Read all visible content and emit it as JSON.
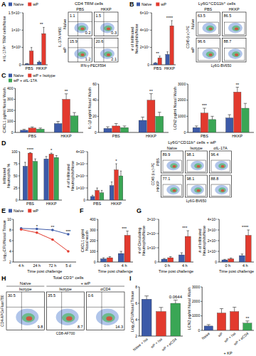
{
  "chart_data": [
    {
      "type": "bar",
      "title": "A",
      "ylabel": "# IL-17A⁺ TRM cells/Nose",
      "categories": [
        "PBS",
        "HKKP"
      ],
      "series": [
        {
          "name": "Naïve",
          "color": "#3c5aa8",
          "values": [
            300,
            800
          ],
          "errors": [
            100,
            250
          ]
        },
        {
          "name": "wP",
          "color": "#e23a2e",
          "values": [
            4000,
            9000
          ],
          "errors": [
            1000,
            1800
          ]
        }
      ],
      "ylim": [
        0,
        15000
      ],
      "yticks": [
        0,
        {
          "value": 5000,
          "label": "5×10³"
        },
        {
          "value": 10000,
          "label": "1×10⁴"
        },
        {
          "value": 15000,
          "label": "1.5×10⁴"
        }
      ],
      "legend": "top",
      "annotations": [
        {
          "text": "**",
          "category": 1
        }
      ]
    },
    {
      "type": "flow",
      "subtitle": "CD4 TRM cells",
      "rows": [
        "Naïve",
        "wP"
      ],
      "columns": [
        "PBS",
        "HKKP"
      ],
      "xlabel": "IFN-γ-PECF594",
      "ylabel": "IL-17A-V450",
      "values": [
        [
          1.1,
          0.2
        ],
        [
          1.5,
          0.3
        ],
        [
          15.9,
          1.2
        ],
        [
          20.6,
          2.1
        ]
      ]
    },
    {
      "type": "bar",
      "title": "B",
      "ylabel": "# of Infiltrated Neutrophils/Nose",
      "categories": [
        "PBS",
        "HKKP"
      ],
      "series": [
        {
          "name": "Naïve",
          "color": "#3c5aa8",
          "values": [
            2000,
            12000
          ],
          "errors": [
            600,
            3000
          ]
        },
        {
          "name": "wP",
          "color": "#e23a2e",
          "values": [
            8000,
            45000
          ],
          "errors": [
            2000,
            6000
          ]
        }
      ],
      "ylim": [
        0,
        60000
      ],
      "yticks": [
        0,
        {
          "value": 20000,
          "label": "2×10⁴"
        },
        {
          "value": 40000,
          "label": "4×10⁴"
        },
        {
          "value": 60000,
          "label": "6×10⁴"
        }
      ],
      "legend": "top",
      "annotations": [
        {
          "text": "**",
          "category": 0
        },
        {
          "text": "****",
          "category": 1
        }
      ]
    },
    {
      "type": "flow",
      "subtitle": "Ly6G⁺CD11b⁺ cells",
      "rows": [
        "Naïve",
        "wP"
      ],
      "columns": [
        "PBS",
        "HKKP"
      ],
      "xlabel": "Ly6G-BV650",
      "ylabel": "CD45 (i.v.)-PE",
      "values": [
        [
          63.5
        ],
        [
          86.5
        ],
        [
          96.6
        ],
        [
          88.7
        ]
      ]
    },
    {
      "type": "bar",
      "title": "C",
      "ylabel": "CXCL1 pg/ml Nasal Wash",
      "categories": [
        "PBS",
        "HKKP"
      ],
      "series": [
        {
          "name": "Naïve",
          "color": "#3c5aa8",
          "values": [
            20,
            80
          ],
          "errors": [
            8,
            20
          ]
        },
        {
          "name": "wP + Isotype",
          "color": "#e23a2e",
          "values": [
            40,
            300
          ],
          "errors": [
            10,
            50
          ]
        },
        {
          "name": "wP + αIL-17A",
          "color": "#3aa655",
          "values": [
            30,
            150
          ],
          "errors": [
            10,
            30
          ]
        }
      ],
      "ylim": [
        0,
        400
      ],
      "yticks": [
        0,
        100,
        200,
        300,
        400
      ],
      "legend": "top",
      "annotations": [
        {
          "text": "**",
          "category": 1
        }
      ]
    },
    {
      "type": "bar",
      "ylabel": "IL-1β pg/ml Nasal Wash",
      "categories": [
        "PBS",
        "HKKP"
      ],
      "series": [
        {
          "color": "#3c5aa8",
          "values": [
            5,
            15
          ],
          "errors": [
            2,
            4
          ]
        },
        {
          "color": "#e23a2e",
          "values": [
            8,
            40
          ],
          "errors": [
            3,
            8
          ]
        },
        {
          "color": "#3aa655",
          "values": [
            6,
            20
          ],
          "errors": [
            2,
            5
          ]
        }
      ],
      "ylim": [
        0,
        60
      ],
      "yticks": [
        0,
        20,
        40,
        60
      ],
      "annotations": [
        {
          "text": "**",
          "category": 1
        }
      ]
    },
    {
      "type": "bar",
      "ylabel": "LCN2 pg/ml Nasal Wash",
      "categories": [
        "PBS",
        "HKKP"
      ],
      "series": [
        {
          "color": "#3c5aa8",
          "values": [
            300,
            900
          ],
          "errors": [
            100,
            200
          ]
        },
        {
          "color": "#e23a2e",
          "values": [
            1200,
            2500
          ],
          "errors": [
            300,
            300
          ]
        },
        {
          "color": "#3aa655",
          "values": [
            800,
            1500
          ],
          "errors": [
            200,
            300
          ]
        }
      ],
      "ylim": [
        0,
        3000
      ],
      "yticks": [
        0,
        1000,
        2000,
        3000
      ],
      "annotations": [
        {
          "text": "***",
          "category": 0
        },
        {
          "text": "**",
          "category": 1
        }
      ]
    },
    {
      "type": "bar",
      "title": "D",
      "ylabel": "Infiltrated Neutrophils %",
      "categories": [
        "PBS",
        "HKKP"
      ],
      "series": [
        {
          "color": "#3c5aa8",
          "values": [
            70,
            85
          ],
          "errors": [
            8,
            5
          ]
        },
        {
          "color": "#e23a2e",
          "values": [
            97,
            95
          ],
          "errors": [
            1,
            2
          ]
        },
        {
          "color": "#3aa655",
          "values": [
            80,
            88
          ],
          "errors": [
            5,
            4
          ]
        }
      ],
      "ylim": [
        0,
        100
      ],
      "yticks": [
        0,
        25,
        50,
        75,
        100
      ],
      "annotations": [
        {
          "text": "****",
          "category": 0
        },
        {
          "text": "*",
          "category": 1
        }
      ]
    },
    {
      "type": "bar",
      "ylabel": "# of Infiltrated Neutrophils/Nose",
      "categories": [
        "PBS",
        "HKKP"
      ],
      "series": [
        {
          "color": "#3c5aa8",
          "values": [
            3000,
            12000
          ],
          "errors": [
            1000,
            3000
          ]
        },
        {
          "color": "#e23a2e",
          "values": [
            8000,
            25000
          ],
          "errors": [
            2000,
            5000
          ]
        },
        {
          "color": "#3aa655",
          "values": [
            6000,
            20000
          ],
          "errors": [
            2000,
            4000
          ]
        }
      ],
      "ylim": [
        0,
        40000
      ],
      "yticks": [
        0,
        {
          "value": 10000,
          "label": "1×10⁴"
        },
        {
          "value": 20000,
          "label": "2×10⁴"
        },
        {
          "value": 30000,
          "label": "3×10⁴"
        },
        {
          "value": 40000,
          "label": "4×10⁴"
        }
      ],
      "annotations": [
        {
          "text": "*",
          "category": 1
        }
      ]
    },
    {
      "type": "flow",
      "subtitle": "Ly6G⁺CD11b⁺ cells + wP",
      "rows": [
        "PBS",
        "HKKP"
      ],
      "columns": [
        "Naïve",
        "Isotype",
        "αIL-17A"
      ],
      "xlabel": "Ly6G-BV650",
      "ylabel": "CD45 (i.v.)-PE",
      "values": [
        [
          89.9
        ],
        [
          98.1
        ],
        [
          96.4
        ],
        [
          77.1
        ],
        [
          98.1
        ],
        [
          88.8
        ]
      ]
    },
    {
      "type": "line",
      "title": "E",
      "ylabel": "Log₁₀CFU/Nasal Tissue",
      "xlabel": "Time post challenge",
      "categories": [
        "4 h",
        "24 h",
        "72 h",
        "5 d"
      ],
      "series": [
        {
          "name": "Naïve",
          "color": "#3c5aa8",
          "values": [
            8.3,
            8.2,
            8.0,
            7.2
          ]
        },
        {
          "name": "wP",
          "color": "#e23a2e",
          "values": [
            8.1,
            7.5,
            6.2,
            4.0
          ]
        }
      ],
      "ylim": [
        2,
        10
      ],
      "yticks": [
        2,
        4,
        6,
        8,
        10
      ],
      "legend": "top",
      "annotations": [
        {
          "text": "*",
          "category": 1
        },
        {
          "text": "**",
          "category": 2
        },
        {
          "text": "***",
          "category": 3
        }
      ]
    },
    {
      "type": "bar",
      "title": "F",
      "ylabel": "CXCL1 pg/ml Nasal wash",
      "xlabel": "Time post challenge",
      "categories": [
        "0 h",
        "4 h"
      ],
      "series": [
        {
          "color": "#3c5aa8",
          "values": [
            30,
            80
          ],
          "errors": [
            10,
            20
          ]
        },
        {
          "color": "#e23a2e",
          "values": [
            40,
            250
          ],
          "errors": [
            10,
            40
          ]
        }
      ],
      "ylim": [
        0,
        400
      ],
      "yticks": [
        0,
        100,
        200,
        300,
        400
      ],
      "annotations": [
        {
          "text": "***",
          "category": 1
        }
      ]
    },
    {
      "type": "bar",
      "title": "G",
      "ylabel": "# of Circulating Neutrophils/Nose",
      "xlabel": "Time post challenge",
      "categories": [
        "0 h",
        "4 h"
      ],
      "series": [
        {
          "color": "#3c5aa8",
          "values": [
            2000,
            5000
          ],
          "errors": [
            500,
            1500
          ]
        },
        {
          "color": "#e23a2e",
          "values": [
            3000,
            18000
          ],
          "errors": [
            800,
            4000
          ]
        }
      ],
      "ylim": [
        0,
        30000
      ],
      "yticks": [
        0,
        {
          "value": 10000,
          "label": "1×10⁴"
        },
        {
          "value": 20000,
          "label": "2×10⁴"
        },
        {
          "value": 30000,
          "label": "3×10⁴"
        }
      ],
      "annotations": [
        {
          "text": "***",
          "category": 1
        }
      ]
    },
    {
      "type": "bar",
      "ylabel": "# of Infiltrated Neutrophils/Nose",
      "xlabel": "Time post challenge",
      "categories": [
        "0 h",
        "4 h"
      ],
      "series": [
        {
          "color": "#3c5aa8",
          "values": [
            2000,
            6000
          ],
          "errors": [
            500,
            1500
          ]
        },
        {
          "color": "#e23a2e",
          "values": [
            3000,
            25000
          ],
          "errors": [
            800,
            5000
          ]
        }
      ],
      "ylim": [
        0,
        40000
      ],
      "yticks": [
        0,
        {
          "value": 10000,
          "label": "1×10⁴"
        },
        {
          "value": 20000,
          "label": "2×10⁴"
        },
        {
          "value": 30000,
          "label": "3×10⁴"
        },
        {
          "value": 40000,
          "label": "4×10⁴"
        }
      ],
      "annotations": [
        {
          "text": "****",
          "category": 1
        }
      ]
    },
    {
      "type": "flow",
      "title": "H",
      "subtitle": "Total CD3⁺ cells",
      "groups": [
        {
          "text": "Naïve",
          "span": 1
        },
        {
          "text": "+ wP",
          "span": 2
        }
      ],
      "columns": [
        "Isotype",
        "Isotype",
        "αCD4"
      ],
      "xlabel": "CD8-AF700",
      "ylabel": "CD4-APCeFluor780",
      "values": [
        [
          30.5,
          9.8
        ],
        [
          35.5,
          8.7
        ],
        [
          0.6,
          14.3
        ]
      ]
    },
    {
      "type": "bar",
      "title": "I",
      "ylabel": "Log₁₀CFU/Nasal Tissue",
      "categories": [
        "Naive + Iso",
        "wP + Iso",
        "wP + αCD4"
      ],
      "series": [
        {
          "colors": [
            "#3c5aa8",
            "#e23a2e",
            "#3aa655"
          ],
          "values": [
            6.5,
            5.0,
            6.0
          ],
          "errors": [
            0.4,
            0.5,
            0.4
          ]
        }
      ],
      "ylim": [
        2,
        8
      ],
      "yticks": [
        2,
        4,
        6,
        8
      ],
      "annotations": [
        {
          "text": "0.0644",
          "category": 2
        }
      ]
    },
    {
      "type": "bar",
      "ylabel": "LCN2 pg/ml Nasal Wash",
      "xlabel": "+ KP",
      "categories": [
        "Naive",
        "wP",
        "wP + Iso",
        "wP + αCD4"
      ],
      "series": [
        {
          "colors": [
            "#3c5aa8",
            "#e23a2e",
            "#e23a2e",
            "#3aa655"
          ],
          "values": [
            300,
            1200,
            1300,
            500
          ],
          "errors": [
            100,
            300,
            300,
            150
          ]
        }
      ],
      "ylim": [
        0,
        3000
      ],
      "yticks": [
        0,
        1000,
        2000,
        3000
      ],
      "annotations": [
        {
          "text": "**",
          "category": 3
        }
      ]
    }
  ]
}
